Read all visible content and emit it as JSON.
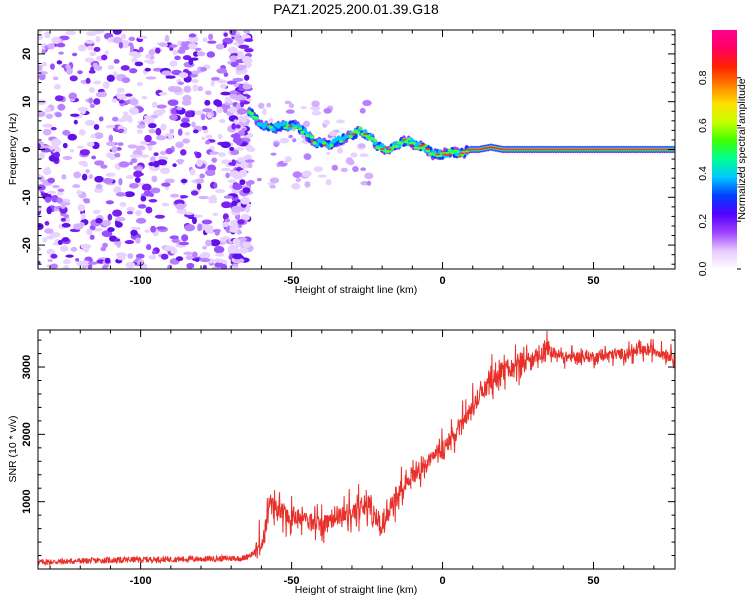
{
  "figure": {
    "title": "PAZ1.2025.200.01.39.G18"
  },
  "colors": {
    "snr_line": "#e8302a",
    "frame": "#000000"
  },
  "chart_data": [
    {
      "type": "heatmap",
      "panel": "spectrogram",
      "xlabel": "Height of straight line (km)",
      "ylabel": "Frequency (Hz)",
      "xlim": [
        -134,
        77
      ],
      "ylim": [
        -25,
        25
      ],
      "xticks": [
        -100,
        -50,
        0,
        50
      ],
      "yticks": [
        -20,
        -10,
        0,
        10,
        20
      ],
      "noise_region_x": [
        -134,
        -64
      ],
      "signal_trace": {
        "x": [
          -64,
          -60,
          -56,
          -52,
          -48,
          -45,
          -42,
          -38,
          -34,
          -30,
          -27,
          -24,
          -21,
          -18,
          -15,
          -12,
          -9,
          -6,
          -3,
          0,
          3,
          6,
          9,
          12,
          16,
          20,
          25,
          30,
          35,
          40,
          50,
          60,
          70,
          77
        ],
        "freq": [
          8,
          5,
          4.5,
          5,
          5,
          3,
          1.5,
          1,
          2,
          3,
          4,
          2.5,
          0.5,
          0,
          1,
          2,
          1,
          0.5,
          -1,
          -1,
          -0.5,
          -1,
          0,
          0,
          0.5,
          0,
          0,
          0,
          0,
          0,
          0,
          0,
          0,
          0
        ]
      },
      "colorbar": {
        "label": "Normalized spectral amplitude",
        "range": [
          0.0,
          1.0
        ],
        "ticks": [
          0.0,
          0.2,
          0.4,
          0.6,
          0.8
        ],
        "tick_labels": [
          "0.0",
          "0.2",
          "0.4",
          "0.6",
          "0.8"
        ],
        "colors": [
          "#ffffff",
          "#e6c8ff",
          "#a040ff",
          "#5000ff",
          "#0040ff",
          "#00c8ff",
          "#00ff90",
          "#40ff00",
          "#c8ff00",
          "#ffe000",
          "#ff8000",
          "#ff2000",
          "#ff0060",
          "#ff0090"
        ]
      }
    },
    {
      "type": "line",
      "panel": "snr",
      "xlabel": "Height of straight line (km)",
      "ylabel": "SNR (10 * v/v)",
      "xlim": [
        -134,
        77
      ],
      "ylim": [
        0,
        3550
      ],
      "xticks": [
        -100,
        -50,
        0,
        50
      ],
      "yticks": [
        1000,
        2000,
        3000
      ],
      "series": [
        {
          "x": [
            -134,
            -120,
            -100,
            -80,
            -66,
            -62,
            -59,
            -57,
            -55,
            -50,
            -45,
            -40,
            -35,
            -30,
            -25,
            -20,
            -15,
            -10,
            -5,
            0,
            5,
            10,
            15,
            20,
            25,
            30,
            35,
            40,
            50,
            60,
            70,
            77
          ],
          "y": [
            100,
            120,
            140,
            150,
            160,
            250,
            500,
            950,
            900,
            750,
            750,
            650,
            800,
            850,
            950,
            600,
            1150,
            1400,
            1600,
            1750,
            2050,
            2400,
            2750,
            2900,
            3050,
            3100,
            3250,
            3150,
            3150,
            3200,
            3250,
            3150
          ]
        }
      ]
    }
  ]
}
